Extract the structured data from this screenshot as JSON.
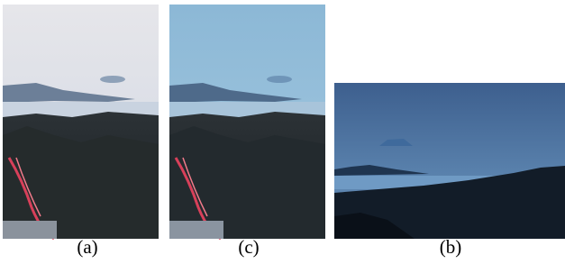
{
  "figure": {
    "panels": [
      {
        "label": "(a)"
      },
      {
        "label": "(c)"
      },
      {
        "label": "(b)"
      }
    ]
  }
}
